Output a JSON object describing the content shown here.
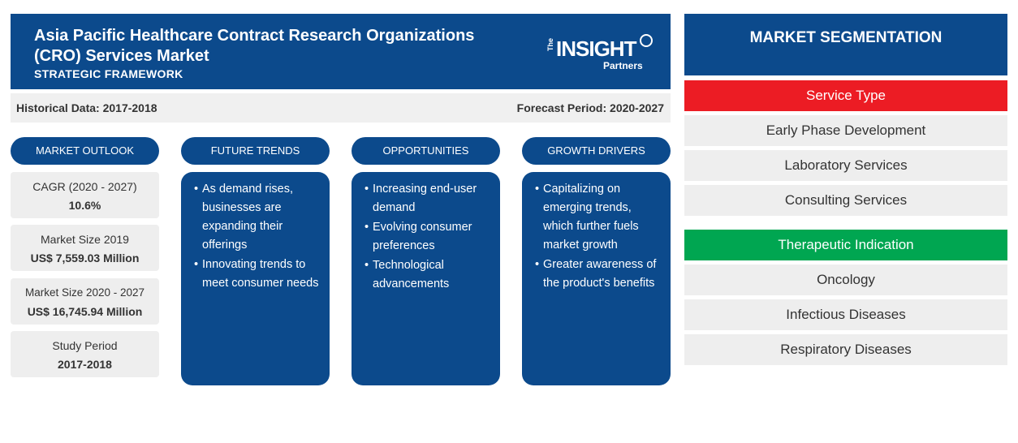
{
  "header": {
    "title": "Asia Pacific Healthcare Contract Research Organizations (CRO) Services Market",
    "subtitle": "STRATEGIC FRAMEWORK",
    "logo": {
      "the": "The",
      "insight": "INSIGHT",
      "partners": "Partners"
    }
  },
  "periods": {
    "historical": "Historical Data: 2017-2018",
    "forecast": "Forecast Period: 2020-2027"
  },
  "columns": {
    "outlook": "MARKET OUTLOOK",
    "trends": "FUTURE TRENDS",
    "opportunities": "OPPORTUNITIES",
    "drivers": "GROWTH DRIVERS"
  },
  "outlook": [
    {
      "label": "CAGR (2020 - 2027)",
      "value": "10.6%"
    },
    {
      "label": "Market Size 2019",
      "value": "US$ 7,559.03 Million"
    },
    {
      "label": "Market Size 2020 - 2027",
      "value": "US$ 16,745.94 Million"
    },
    {
      "label": "Study Period",
      "value": "2017-2018"
    }
  ],
  "trends": [
    "As demand rises, businesses are expanding their offerings",
    "Innovating trends to meet consumer needs"
  ],
  "opportunities": [
    "Increasing end-user demand",
    "Evolving consumer preferences",
    "Technological advancements"
  ],
  "drivers": [
    "Capitalizing on emerging trends, which further fuels market growth",
    "Greater awareness of the product's benefits"
  ],
  "segmentation": {
    "title": "MARKET SEGMENTATION",
    "service_type": {
      "heading": "Service Type",
      "color": "#ec1c24",
      "items": [
        "Early Phase Development",
        "Laboratory Services",
        "Consulting Services"
      ]
    },
    "therapeutic": {
      "heading": "Therapeutic Indication",
      "color": "#00a651",
      "items": [
        "Oncology",
        "Infectious Diseases",
        "Respiratory Diseases"
      ]
    }
  },
  "colors": {
    "primary": "#0c4a8c",
    "panel_bg": "#eeeeee"
  }
}
